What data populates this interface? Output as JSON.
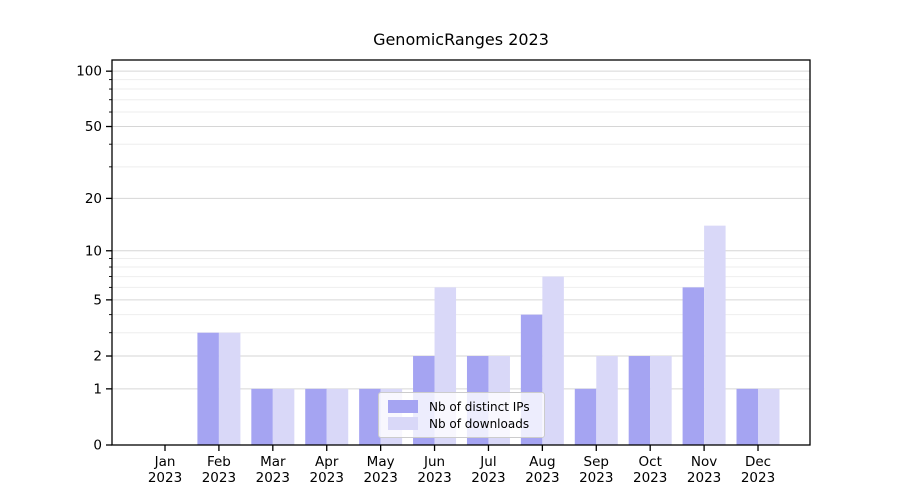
{
  "title": "GenomicRanges 2023",
  "chart_data": {
    "type": "bar",
    "title": "GenomicRanges 2023",
    "x_tick_months": [
      "Jan",
      "Feb",
      "Mar",
      "Apr",
      "May",
      "Jun",
      "Jul",
      "Aug",
      "Sep",
      "Oct",
      "Nov",
      "Dec"
    ],
    "x_tick_year": "2023",
    "y_scale": "log1p",
    "y_major_ticks": [
      0,
      1,
      2,
      5,
      10,
      20,
      50,
      100
    ],
    "y_minor_ticks": [
      3,
      4,
      6,
      7,
      8,
      9,
      30,
      40,
      60,
      70,
      80,
      90
    ],
    "ylim": [
      0,
      116
    ],
    "grid": "horizontal major and minor, on",
    "legend_position": "lower center",
    "legend": [
      "Nb of distinct IPs",
      "Nb of downloads"
    ],
    "series": [
      {
        "name": "Nb of distinct IPs",
        "color": "#a5a4f2",
        "values": [
          0,
          3,
          1,
          1,
          1,
          2,
          2,
          4,
          1,
          2,
          6,
          1
        ]
      },
      {
        "name": "Nb of downloads",
        "color": "#d9d8f8",
        "values": [
          0,
          3,
          1,
          1,
          1,
          6,
          2,
          7,
          2,
          2,
          14,
          1
        ]
      }
    ],
    "colors": {
      "axis": "#000000",
      "text": "#000000",
      "grid_major": "#d6d6d6",
      "grid_minor": "#eeeeee",
      "legend_border": "#cccccc",
      "background": "#ffffff"
    }
  }
}
